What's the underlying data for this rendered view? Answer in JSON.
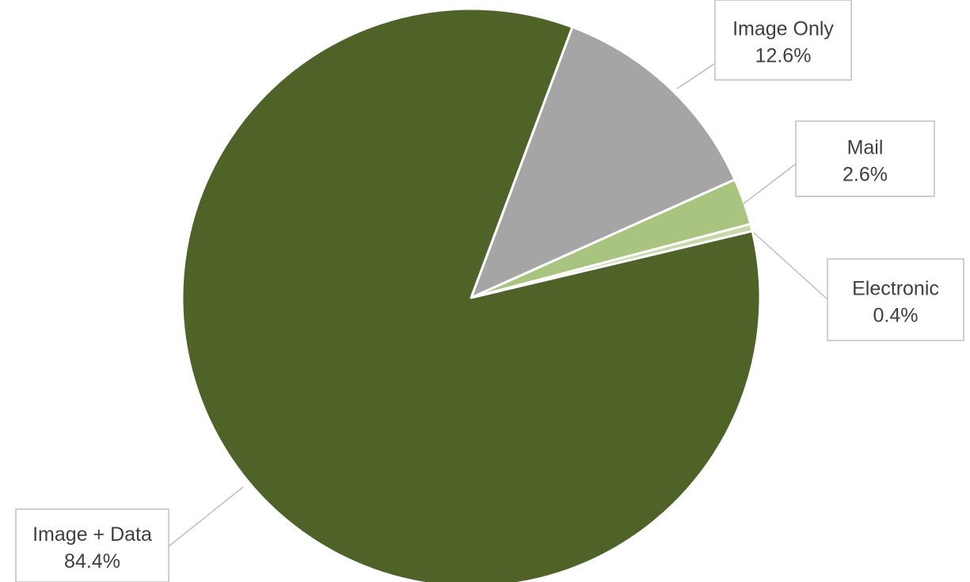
{
  "chart_data": {
    "type": "pie",
    "title": "",
    "slices": [
      {
        "label": "Image Only",
        "value": 12.6,
        "display": "12.6%",
        "color": "#a5a5a5"
      },
      {
        "label": "Mail",
        "value": 2.6,
        "display": "2.6%",
        "color": "#a9c47f"
      },
      {
        "label": "Electronic",
        "value": 0.4,
        "display": "0.4%",
        "color": "#c5d9a8"
      },
      {
        "label": "Image + Data",
        "value": 84.4,
        "display": "84.4%",
        "color": "#4f6228"
      }
    ],
    "legend": "none",
    "data_labels": "callouts with category name and percentage"
  }
}
